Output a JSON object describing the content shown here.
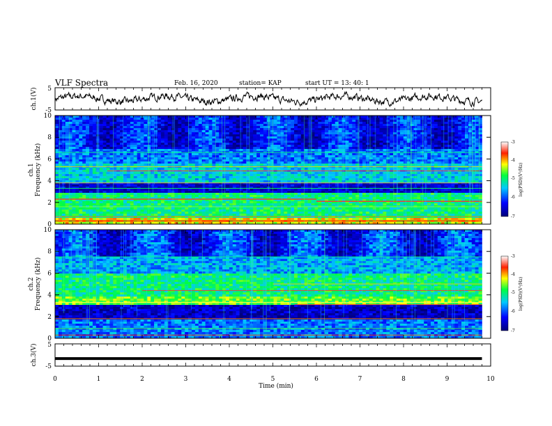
{
  "header": {
    "title": "VLF Spectra",
    "date": "Feb. 16, 2020",
    "station": "station= KAP",
    "start_ut": "start  UT =   13: 40: 1"
  },
  "chart_data": [
    {
      "type": "line",
      "name": "ch1-waveform",
      "ylabel": "ch.1(V)",
      "ylim": [
        -5,
        5
      ],
      "yticks": [
        "5",
        "-5"
      ],
      "xlim": [
        0,
        10
      ],
      "note_series": "continuous noisy waveform roughly between -2 and +2 V"
    },
    {
      "type": "heatmap",
      "name": "ch1-spectrogram",
      "ylabel": "ch.1\nFrequency (kHz)",
      "ylim": [
        0,
        10
      ],
      "yticks": [
        "0",
        "2",
        "4",
        "6",
        "8",
        "10"
      ],
      "xlim": [
        0,
        10
      ],
      "colorbar": {
        "label": "log(PSD)(V²/Hz)",
        "range": [
          -7,
          -3
        ],
        "ticks": [
          "-3",
          "-4",
          "-5",
          "-6",
          "-7"
        ]
      }
    },
    {
      "type": "heatmap",
      "name": "ch2-spectrogram",
      "ylabel": "ch.2\nFrequency (kHz)",
      "ylim": [
        0,
        10
      ],
      "yticks": [
        "0",
        "2",
        "4",
        "6",
        "8",
        "10"
      ],
      "xlim": [
        0,
        10
      ],
      "colorbar": {
        "label": "log(PSD)(V²/Hz)",
        "range": [
          -7,
          -3
        ],
        "ticks": [
          "-3",
          "-4",
          "-5",
          "-6",
          "-7"
        ]
      }
    },
    {
      "type": "line",
      "name": "ch3-waveform",
      "ylabel": "ch.3(V)",
      "ylim": [
        -5,
        5
      ],
      "yticks": [
        "5",
        "-5"
      ],
      "xlim": [
        0,
        10
      ],
      "series": [
        {
          "x": [
            0,
            9.8
          ],
          "y": [
            -1.6,
            -1.6
          ]
        }
      ]
    }
  ],
  "xaxis": {
    "label": "Time (min)",
    "ticks": [
      "0",
      "1",
      "2",
      "3",
      "4",
      "5",
      "6",
      "7",
      "8",
      "9",
      "10"
    ]
  }
}
